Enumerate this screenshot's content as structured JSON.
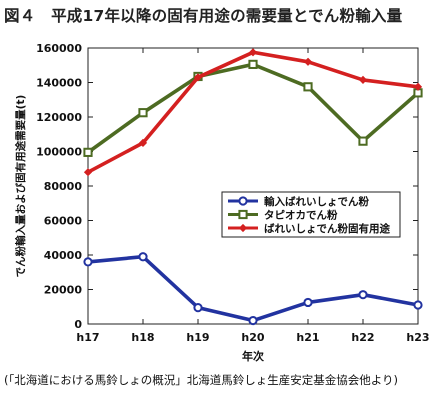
{
  "title": "図４　平成17年以降の固有用途の需要量とでん粉輸入量",
  "source": "(「北海道における馬鈴しょの概況」北海道馬鈴しょ生産安定基金協会他より)",
  "chart_data": {
    "type": "line",
    "xlabel": "年次",
    "ylabel": "でん粉輸入量および固有用途需要量(t)",
    "categories": [
      "h17",
      "h18",
      "h19",
      "h20",
      "h21",
      "h22",
      "h23"
    ],
    "ylim": [
      0,
      160000
    ],
    "yticks": [
      0,
      20000,
      40000,
      60000,
      80000,
      100000,
      120000,
      140000,
      160000
    ],
    "grid": false,
    "legend_position": "center-right",
    "series": [
      {
        "name": "輸入ばれいしょでん粉",
        "color": "#2233a0",
        "marker": "circle",
        "values": [
          36000,
          39000,
          9500,
          2000,
          12500,
          17000,
          11000
        ]
      },
      {
        "name": "タピオカでん粉",
        "color": "#4d6b22",
        "marker": "square",
        "values": [
          99500,
          122500,
          143500,
          150500,
          137500,
          106000,
          134000
        ]
      },
      {
        "name": "ばれいしょでん粉固有用途",
        "color": "#d42020",
        "marker": "diamond",
        "values": [
          88000,
          105000,
          143000,
          157500,
          152000,
          141500,
          137500
        ]
      }
    ]
  }
}
